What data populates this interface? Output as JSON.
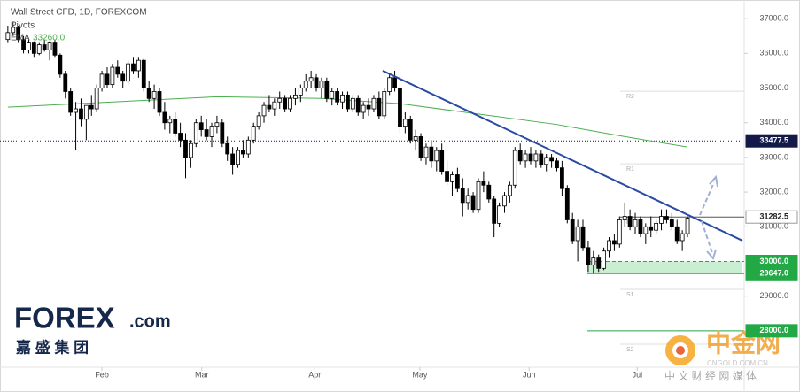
{
  "chart_data": {
    "type": "candlestick",
    "title": "Wall Street CFD, 1D, FOREXCOM",
    "indicator": "Pivots",
    "up_color": "#ffffff",
    "down_color": "#000000",
    "xlim": [
      -1.5,
      140.5
    ],
    "ylim": [
      26950,
      37540
    ],
    "xticks": [
      {
        "value": 18.0,
        "label": "Feb"
      },
      {
        "value": 37.1,
        "label": "Mar"
      },
      {
        "value": 58.7,
        "label": "Apr"
      },
      {
        "value": 78.8,
        "label": "May"
      },
      {
        "value": 99.7,
        "label": "Jun"
      },
      {
        "value": 120.4,
        "label": "Jul"
      }
    ],
    "yticks": [
      {
        "value": 37000,
        "label": "37000.0"
      },
      {
        "value": 36000,
        "label": "36000.0"
      },
      {
        "value": 35000,
        "label": "35000.0"
      },
      {
        "value": 34000,
        "label": "34000.0"
      },
      {
        "value": 33000,
        "label": "33000.0"
      },
      {
        "value": 32000,
        "label": "32000.0"
      },
      {
        "value": 31000,
        "label": "31000.0"
      },
      {
        "value": 29000,
        "label": "29000.0"
      }
    ],
    "candles": [
      [
        36400,
        36800,
        36300,
        36600
      ],
      [
        36600,
        36900,
        36500,
        36750
      ],
      [
        36750,
        36800,
        36300,
        36400
      ],
      [
        36400,
        36500,
        36000,
        36100
      ],
      [
        36100,
        36400,
        36000,
        36300
      ],
      [
        36300,
        36350,
        35900,
        36000
      ],
      [
        36000,
        36300,
        35950,
        36250
      ],
      [
        36250,
        36400,
        36050,
        36100
      ],
      [
        36100,
        36350,
        35800,
        36300
      ],
      [
        36300,
        36400,
        35900,
        35950
      ],
      [
        35950,
        36000,
        35300,
        35400
      ],
      [
        35400,
        35500,
        34700,
        34900
      ],
      [
        34900,
        35000,
        34200,
        34300
      ],
      [
        34300,
        34600,
        33200,
        34400
      ],
      [
        34400,
        34700,
        33900,
        34100
      ],
      [
        34100,
        34500,
        33500,
        34500
      ],
      [
        34500,
        34800,
        34200,
        34400
      ],
      [
        34400,
        35100,
        34300,
        35000
      ],
      [
        35000,
        35500,
        34900,
        35400
      ],
      [
        35400,
        35600,
        35000,
        35100
      ],
      [
        35100,
        35700,
        35000,
        35600
      ],
      [
        35600,
        35800,
        35300,
        35400
      ],
      [
        35400,
        35500,
        35000,
        35200
      ],
      [
        35200,
        35800,
        35100,
        35700
      ],
      [
        35700,
        35900,
        35400,
        35500
      ],
      [
        35500,
        35900,
        35300,
        35800
      ],
      [
        35800,
        35850,
        34900,
        35000
      ],
      [
        35000,
        35200,
        34600,
        34700
      ],
      [
        34700,
        35100,
        34400,
        34900
      ],
      [
        34900,
        35000,
        34200,
        34300
      ],
      [
        34300,
        34600,
        33800,
        34000
      ],
      [
        34000,
        34200,
        33700,
        34100
      ],
      [
        34100,
        34300,
        33600,
        33700
      ],
      [
        33700,
        34000,
        33300,
        33500
      ],
      [
        33500,
        33700,
        32400,
        33000
      ],
      [
        33000,
        33500,
        32700,
        33400
      ],
      [
        33400,
        34100,
        33300,
        34000
      ],
      [
        34000,
        34200,
        33600,
        33800
      ],
      [
        33800,
        34100,
        33500,
        33600
      ],
      [
        33600,
        34000,
        33300,
        33900
      ],
      [
        33900,
        34200,
        33700,
        34000
      ],
      [
        34000,
        34100,
        33300,
        33400
      ],
      [
        33400,
        33600,
        32900,
        33100
      ],
      [
        33100,
        33300,
        32500,
        32800
      ],
      [
        32800,
        33300,
        32700,
        33200
      ],
      [
        33200,
        33500,
        33000,
        33100
      ],
      [
        33100,
        33600,
        33000,
        33500
      ],
      [
        33500,
        34000,
        33400,
        33900
      ],
      [
        33900,
        34300,
        33800,
        34200
      ],
      [
        34200,
        34600,
        34000,
        34500
      ],
      [
        34500,
        34800,
        34300,
        34400
      ],
      [
        34400,
        34700,
        34200,
        34600
      ],
      [
        34600,
        34900,
        34400,
        34700
      ],
      [
        34700,
        34800,
        34300,
        34400
      ],
      [
        34400,
        34800,
        34300,
        34700
      ],
      [
        34700,
        35000,
        34500,
        34800
      ],
      [
        34800,
        35100,
        34600,
        35000
      ],
      [
        35000,
        35400,
        34900,
        35200
      ],
      [
        35200,
        35500,
        35000,
        35300
      ],
      [
        35300,
        35400,
        34900,
        35000
      ],
      [
        35000,
        35300,
        34700,
        35200
      ],
      [
        35200,
        35300,
        34600,
        34700
      ],
      [
        34700,
        35000,
        34500,
        34900
      ],
      [
        34900,
        35000,
        34500,
        34600
      ],
      [
        34600,
        34900,
        34400,
        34800
      ],
      [
        34800,
        34900,
        34300,
        34400
      ],
      [
        34400,
        34800,
        34300,
        34700
      ],
      [
        34700,
        34800,
        34200,
        34300
      ],
      [
        34300,
        34600,
        34100,
        34500
      ],
      [
        34500,
        34700,
        34200,
        34400
      ],
      [
        34400,
        34800,
        34300,
        34700
      ],
      [
        34700,
        34900,
        34100,
        34200
      ],
      [
        34200,
        35000,
        34100,
        34900
      ],
      [
        34900,
        35400,
        34800,
        35300
      ],
      [
        35300,
        35500,
        34900,
        35000
      ],
      [
        35000,
        35100,
        33700,
        33900
      ],
      [
        33900,
        34300,
        33700,
        34100
      ],
      [
        34100,
        34200,
        33400,
        33500
      ],
      [
        33500,
        33800,
        33200,
        33600
      ],
      [
        33600,
        33700,
        32900,
        33000
      ],
      [
        33000,
        33400,
        32800,
        33300
      ],
      [
        33300,
        33500,
        32700,
        32900
      ],
      [
        32900,
        33300,
        32600,
        33200
      ],
      [
        33200,
        33400,
        32500,
        32600
      ],
      [
        32600,
        32900,
        32200,
        32300
      ],
      [
        32300,
        32600,
        31900,
        32500
      ],
      [
        32500,
        32700,
        32000,
        32100
      ],
      [
        32100,
        32400,
        31300,
        31700
      ],
      [
        31700,
        32100,
        31500,
        31900
      ],
      [
        31900,
        32000,
        31400,
        31500
      ],
      [
        31500,
        32400,
        31400,
        32300
      ],
      [
        32300,
        32600,
        32000,
        32200
      ],
      [
        32200,
        32300,
        31700,
        31800
      ],
      [
        31800,
        31900,
        30700,
        31100
      ],
      [
        31100,
        31700,
        31000,
        31600
      ],
      [
        31600,
        32000,
        31400,
        31900
      ],
      [
        31900,
        32300,
        31700,
        32200
      ],
      [
        32200,
        33300,
        32100,
        33200
      ],
      [
        33200,
        33400,
        32800,
        32900
      ],
      [
        32900,
        33200,
        32700,
        33100
      ],
      [
        33100,
        33300,
        32800,
        32900
      ],
      [
        32900,
        33200,
        32700,
        33100
      ],
      [
        33100,
        33200,
        32700,
        32800
      ],
      [
        32800,
        33100,
        32600,
        33000
      ],
      [
        33000,
        33100,
        32700,
        32900
      ],
      [
        32900,
        33000,
        32600,
        32700
      ],
      [
        32700,
        32900,
        31900,
        32100
      ],
      [
        32100,
        32200,
        31100,
        31200
      ],
      [
        31200,
        31400,
        30500,
        30600
      ],
      [
        30600,
        31200,
        30000,
        31000
      ],
      [
        31000,
        31200,
        30300,
        30400
      ],
      [
        30400,
        30600,
        29700,
        29900
      ],
      [
        29900,
        30300,
        29650,
        30100
      ],
      [
        30100,
        30200,
        29700,
        29800
      ],
      [
        29800,
        30400,
        29750,
        30300
      ],
      [
        30300,
        30700,
        30100,
        30600
      ],
      [
        30600,
        30800,
        30300,
        30500
      ],
      [
        30500,
        31300,
        30400,
        31200
      ],
      [
        31200,
        31700,
        31000,
        31300
      ],
      [
        31300,
        31500,
        30900,
        31000
      ],
      [
        31000,
        31400,
        30800,
        31200
      ],
      [
        31200,
        31300,
        30700,
        30800
      ],
      [
        30800,
        31100,
        30500,
        31000
      ],
      [
        31000,
        31300,
        30700,
        30900
      ],
      [
        30900,
        31200,
        30800,
        31100
      ],
      [
        31100,
        31500,
        30900,
        31300
      ],
      [
        31300,
        31500,
        31100,
        31200
      ],
      [
        31200,
        31400,
        30900,
        31000
      ],
      [
        31000,
        31200,
        30500,
        30600
      ],
      [
        30600,
        30900,
        30300,
        30800
      ],
      [
        30800,
        31300,
        30700,
        31250
      ]
    ],
    "ema": {
      "name": "EMA",
      "color": "#4caf50",
      "last_value": {
        "value": 33260,
        "label": "33260.0"
      },
      "x": [
        0,
        20,
        40,
        60,
        75,
        90,
        105,
        118,
        130
      ],
      "values": [
        34450,
        34600,
        34750,
        34700,
        34550,
        34250,
        33950,
        33600,
        33300
      ]
    },
    "trendline": {
      "color": "#2b4aa3",
      "x": [
        71.7,
        140.5
      ],
      "values": [
        35500,
        30600
      ]
    },
    "pivots": [
      {
        "name": "R2",
        "value": 34908
      },
      {
        "name": "R1",
        "value": 32816
      },
      {
        "name": "P",
        "value": 31282.5,
        "tag": true
      },
      {
        "name": "S1",
        "value": 29194
      },
      {
        "name": "S2",
        "value": 27612
      }
    ],
    "levels": [
      {
        "price": 33477.5,
        "color": "#131a4a",
        "line": "dotted",
        "span": "full"
      },
      {
        "price": {
          "value": 30000,
          "label": "30000.0"
        },
        "color": "#22a845",
        "line": "dashed",
        "span": "right",
        "zone_color": "#c9efd3"
      },
      {
        "price": {
          "value": 29647,
          "label": "29647.0"
        },
        "color": "#22a845",
        "line": "solid",
        "span": "right"
      },
      {
        "price": {
          "value": 28000,
          "label": "28000.0"
        },
        "color": "#22a845",
        "line": "solid",
        "span": "right"
      }
    ]
  },
  "logo": {
    "brand": "FOREX",
    "suffix": ".com",
    "chinese": "嘉 盛 集 团"
  },
  "watermark": {
    "name": "中金网",
    "site": "CNGOLD.COM.CN",
    "tagline": "中 文 财 经 网 媒 体"
  }
}
